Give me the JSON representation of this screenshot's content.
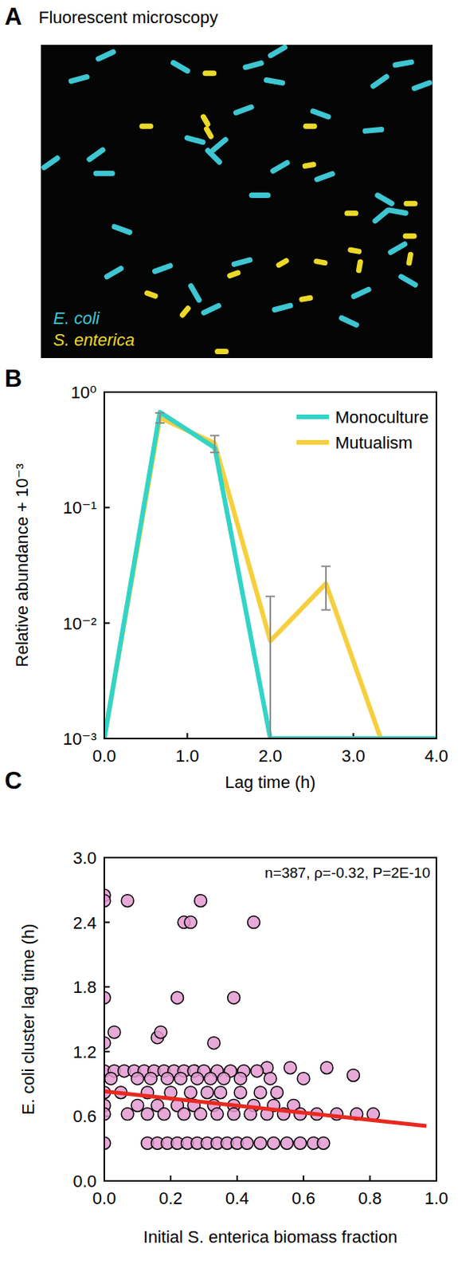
{
  "chart_data": [
    {
      "panel": "A",
      "type": "image",
      "title": "Fluorescent microscopy",
      "series": [
        {
          "name": "E. coli",
          "color": "#3ec6d2"
        },
        {
          "name": "S. enterica",
          "color": "#ecd82a"
        }
      ],
      "legend": "bottom-left"
    },
    {
      "panel": "B",
      "type": "line",
      "x_label": "Lag time (h)",
      "y_label": "Relative abundance + 10⁻³",
      "x": [
        0,
        0.67,
        1.33,
        2.0,
        2.67,
        3.33,
        4.0
      ],
      "series": [
        {
          "name": "Monoculture",
          "color": "#33d4c6",
          "values": [
            0.001,
            0.67,
            0.33,
            0.001,
            0.001,
            0.001,
            0.001
          ]
        },
        {
          "name": "Mutualism",
          "color": "#f6cf3e",
          "values": [
            0.001,
            0.6,
            0.36,
            0.007,
            0.022,
            0.001,
            0.001
          ],
          "errors": [
            null,
            0.06,
            0.06,
            0.01,
            0.009,
            null,
            null
          ]
        }
      ],
      "log": "y",
      "xlim": [
        0,
        4
      ],
      "ylim": [
        0.001,
        1
      ],
      "xticks": [
        {
          "value": 0,
          "label": "0.0"
        },
        {
          "value": 1,
          "label": "1.0"
        },
        {
          "value": 2,
          "label": "2.0"
        },
        {
          "value": 3,
          "label": "3.0"
        },
        {
          "value": 4,
          "label": "4.0"
        }
      ],
      "yticks": [
        {
          "value": 0.001,
          "label": "10⁻³"
        },
        {
          "value": 0.01,
          "label": "10⁻²"
        },
        {
          "value": 0.1,
          "label": "10⁻¹"
        },
        {
          "value": 1,
          "label": "10⁰"
        }
      ],
      "legend": "top-right"
    },
    {
      "panel": "C",
      "type": "scatter",
      "x_label": "Initial S. enterica biomass fraction",
      "y_label": "E. coli cluster lag time (h)",
      "annotation": "n=387, ρ=-0.32, P=2E-10",
      "series": [
        {
          "color": "#e39ad0",
          "x": [
            0,
            0,
            0.07,
            0.29,
            0.24,
            0.26,
            0.45,
            0,
            0.22,
            0.39,
            0,
            0.03,
            0.16,
            0.17,
            0.33,
            0.49,
            0.56,
            0.67,
            0.75,
            0,
            0.03,
            0.06,
            0.09,
            0.12,
            0.15,
            0.18,
            0.21,
            0.24,
            0.27,
            0.3,
            0.34,
            0.38,
            0.42,
            0.46,
            0.02,
            0.1,
            0.14,
            0.19,
            0.23,
            0.28,
            0.32,
            0.36,
            0.41,
            0.5,
            0.6,
            0,
            0.05,
            0.13,
            0.2,
            0.26,
            0.31,
            0.35,
            0.41,
            0.47,
            0.52,
            0,
            0.1,
            0.16,
            0.22,
            0.27,
            0.33,
            0.39,
            0.45,
            0.51,
            0.57,
            0,
            0.07,
            0.13,
            0.18,
            0.24,
            0.29,
            0.34,
            0.39,
            0.44,
            0.49,
            0.54,
            0.59,
            0.64,
            0.7,
            0.76,
            0.81,
            0,
            0.13,
            0.16,
            0.19,
            0.22,
            0.25,
            0.28,
            0.31,
            0.34,
            0.37,
            0.4,
            0.43,
            0.47,
            0.51,
            0.55,
            0.59,
            0.63,
            0.66
          ],
          "values": [
            2.65,
            2.6,
            2.6,
            2.6,
            2.4,
            2.4,
            2.4,
            1.7,
            1.7,
            1.7,
            1.28,
            1.38,
            1.33,
            1.38,
            1.28,
            1.05,
            1.05,
            1.05,
            0.98,
            1.02,
            1.02,
            1.02,
            1.02,
            1.02,
            1.02,
            1.02,
            1.02,
            1.02,
            1.02,
            1.02,
            1.02,
            1.02,
            1.02,
            1.02,
            0.95,
            0.95,
            0.95,
            0.95,
            0.95,
            0.95,
            0.95,
            0.95,
            0.95,
            0.95,
            0.95,
            0.82,
            0.82,
            0.82,
            0.82,
            0.82,
            0.82,
            0.82,
            0.82,
            0.82,
            0.82,
            0.7,
            0.7,
            0.7,
            0.7,
            0.7,
            0.7,
            0.7,
            0.7,
            0.7,
            0.7,
            0.62,
            0.62,
            0.62,
            0.62,
            0.62,
            0.62,
            0.62,
            0.62,
            0.62,
            0.62,
            0.62,
            0.62,
            0.62,
            0.62,
            0.62,
            0.62,
            0.35,
            0.35,
            0.35,
            0.35,
            0.35,
            0.35,
            0.35,
            0.35,
            0.35,
            0.35,
            0.35,
            0.35,
            0.35,
            0.35,
            0.35,
            0.35,
            0.35,
            0.35
          ]
        }
      ],
      "trend": {
        "x": [
          0,
          0.97
        ],
        "values": [
          0.83,
          0.51
        ],
        "color": "#e8291f"
      },
      "xlim": [
        0,
        1
      ],
      "ylim": [
        0,
        3
      ],
      "xticks": [
        {
          "value": 0,
          "label": "0.0"
        },
        0.2,
        0.4,
        0.6,
        0.8,
        {
          "value": 1,
          "label": "1.0"
        }
      ],
      "yticks": [
        {
          "value": 0,
          "label": "0.0"
        },
        0.6,
        1.2,
        1.8,
        2.4,
        {
          "value": 3,
          "label": "3.0"
        }
      ]
    }
  ]
}
